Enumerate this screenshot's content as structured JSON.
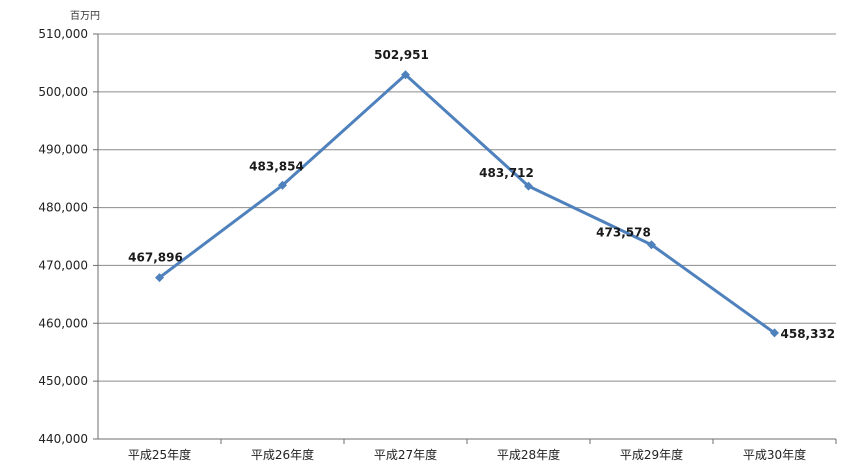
{
  "chart_data": {
    "type": "line",
    "unit_label": "百万円",
    "categories": [
      "平成25年度",
      "平成26年度",
      "平成27年度",
      "平成28年度",
      "平成29年度",
      "平成30年度"
    ],
    "series": [
      {
        "values": [
          467896,
          483854,
          502951,
          483712,
          473578,
          458332
        ]
      }
    ],
    "data_labels": [
      "467,896",
      "483,854",
      "502,951",
      "483,712",
      "473,578",
      "458,332"
    ],
    "y_ticks": [
      "440,000",
      "450,000",
      "460,000",
      "470,000",
      "480,000",
      "490,000",
      "500,000",
      "510,000"
    ],
    "ylim": [
      440000,
      510000
    ],
    "grid": true,
    "legend": "none",
    "line_color": "#4f81bd",
    "grid_color": "#8c8c8c"
  }
}
